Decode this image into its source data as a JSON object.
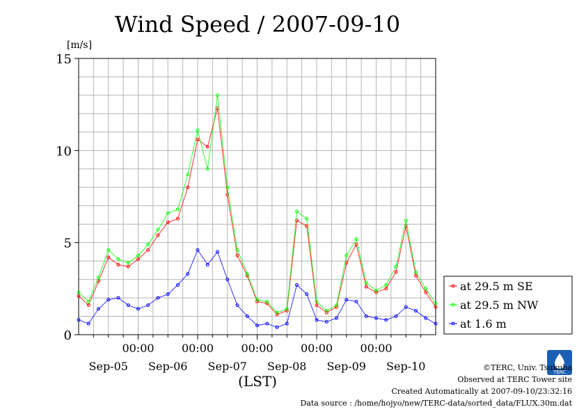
{
  "chart_data": {
    "type": "line",
    "title": "Wind Speed / 2007-09-10",
    "ylabel": "[m/s]",
    "xlabel": "(LST)",
    "ylim": [
      0,
      15
    ],
    "y_ticks": [
      "0",
      "5",
      "10",
      "15"
    ],
    "x_time_ticks": [
      "00:00",
      "00:00",
      "00:00",
      "00:00",
      "00:00"
    ],
    "x_day_labels": [
      "Sep-05",
      "Sep-06",
      "Sep-07",
      "Sep-08",
      "Sep-09",
      "Sep-10"
    ],
    "x_range_hours": [
      0,
      144
    ],
    "grid": true,
    "legend_position": "right",
    "series": [
      {
        "name": "at 29.5 m SE",
        "color": "#ff0000",
        "x": [
          0,
          4,
          8,
          12,
          16,
          20,
          24,
          28,
          32,
          36,
          40,
          44,
          48,
          52,
          56,
          60,
          64,
          68,
          72,
          76,
          80,
          84,
          88,
          92,
          96,
          100,
          104,
          108,
          112,
          116,
          120,
          124,
          128,
          132,
          136,
          140,
          144
        ],
        "y": [
          2.1,
          1.6,
          2.9,
          4.2,
          3.8,
          3.7,
          4.1,
          4.6,
          5.4,
          6.1,
          6.3,
          8.0,
          10.6,
          10.2,
          12.3,
          7.6,
          4.3,
          3.2,
          1.8,
          1.7,
          1.1,
          1.3,
          6.2,
          5.9,
          1.6,
          1.2,
          1.5,
          3.9,
          4.9,
          2.6,
          2.3,
          2.5,
          3.4,
          5.9,
          3.2,
          2.3,
          1.5
        ]
      },
      {
        "name": "at 29.5 m NW",
        "color": "#00ff00",
        "x": [
          0,
          4,
          8,
          12,
          16,
          20,
          24,
          28,
          32,
          36,
          40,
          44,
          48,
          52,
          56,
          60,
          64,
          68,
          72,
          76,
          80,
          84,
          88,
          92,
          96,
          100,
          104,
          108,
          112,
          116,
          120,
          124,
          128,
          132,
          136,
          140,
          144
        ],
        "y": [
          2.3,
          1.8,
          3.1,
          4.6,
          4.1,
          3.9,
          4.3,
          4.9,
          5.7,
          6.6,
          6.8,
          8.7,
          11.1,
          9.0,
          13.0,
          8.0,
          4.6,
          3.3,
          1.9,
          1.8,
          1.2,
          1.4,
          6.7,
          6.3,
          1.8,
          1.3,
          1.6,
          4.3,
          5.2,
          2.8,
          2.4,
          2.7,
          3.7,
          6.2,
          3.4,
          2.5,
          1.7
        ]
      },
      {
        "name": "at 1.6 m",
        "color": "#0000ff",
        "x": [
          0,
          4,
          8,
          12,
          16,
          20,
          24,
          28,
          32,
          36,
          40,
          44,
          48,
          52,
          56,
          60,
          64,
          68,
          72,
          76,
          80,
          84,
          88,
          92,
          96,
          100,
          104,
          108,
          112,
          116,
          120,
          124,
          128,
          132,
          136,
          140,
          144
        ],
        "y": [
          0.8,
          0.6,
          1.4,
          1.9,
          2.0,
          1.6,
          1.4,
          1.6,
          2.0,
          2.2,
          2.7,
          3.3,
          4.6,
          3.8,
          4.5,
          3.0,
          1.6,
          1.0,
          0.5,
          0.6,
          0.4,
          0.6,
          2.7,
          2.2,
          0.8,
          0.7,
          0.9,
          1.9,
          1.8,
          1.0,
          0.9,
          0.8,
          1.0,
          1.5,
          1.3,
          0.9,
          0.6
        ]
      }
    ]
  },
  "footer": {
    "copyright": "©TERC, Univ. Tsukuba",
    "observed": "Observed at TERC Tower site",
    "created": "Created Automatically at 2007-09-10/23:32:16",
    "source": "Data source : /home/hojyo/new/TERC-data/sorted_data/FLUX.30m.dat"
  },
  "logo": {
    "text": "TERC",
    "color": "#1a5fb4"
  }
}
